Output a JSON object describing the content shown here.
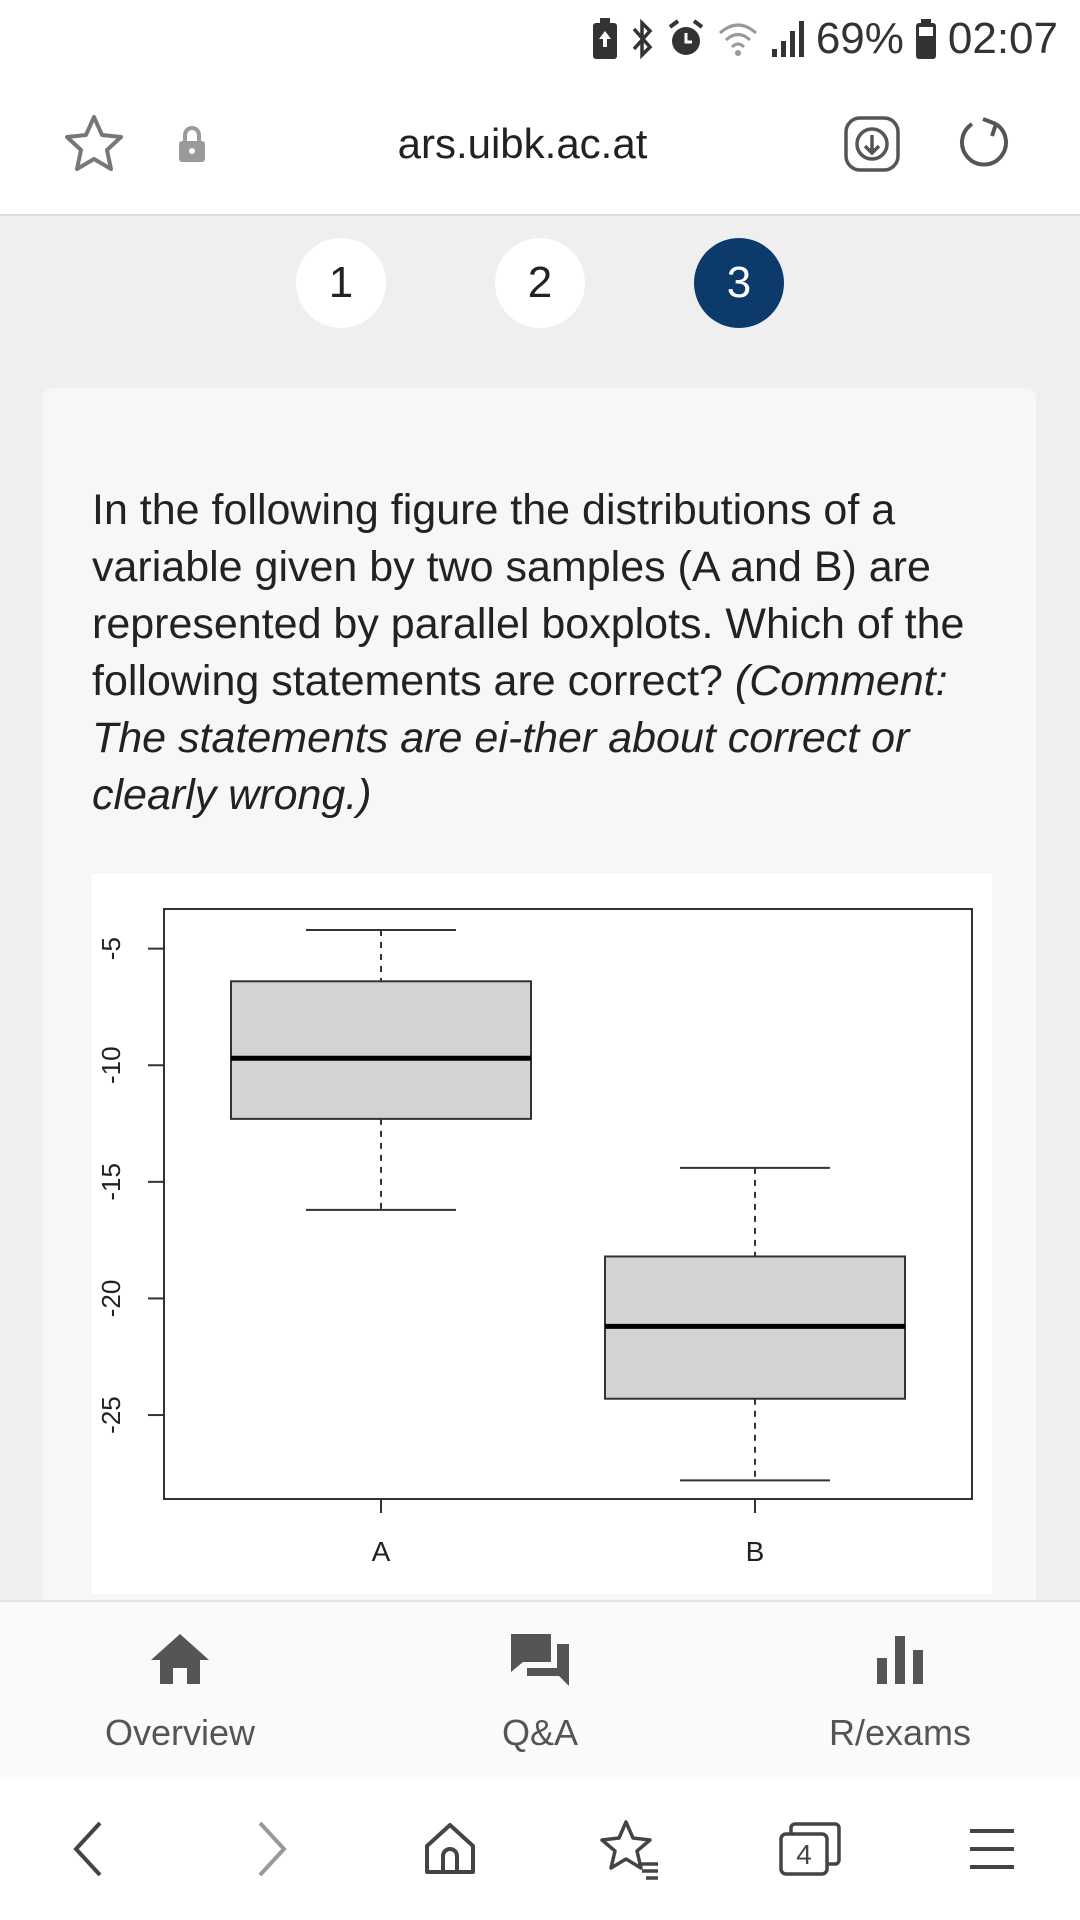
{
  "status_bar": {
    "battery_percent": "69%",
    "time": "02:07",
    "icons": [
      "battery-saver-icon",
      "bluetooth-icon",
      "alarm-icon",
      "wifi-icon",
      "signal-icon",
      "battery-icon"
    ]
  },
  "address_bar": {
    "url": "ars.uibk.ac.at",
    "icons": [
      "star-icon",
      "lock-icon",
      "download-icon",
      "reload-icon"
    ]
  },
  "steps": {
    "items": [
      {
        "label": "1",
        "active": false
      },
      {
        "label": "2",
        "active": false
      },
      {
        "label": "3",
        "active": true
      }
    ],
    "active_color": "#0b3a6b"
  },
  "question": {
    "text": "In the following figure the distributions of a variable given by two samples (A and B) are represented by parallel boxplots. Which of the following statements are correct? ",
    "comment": "(Comment: The statements are ei-ther about correct or clearly wrong.)"
  },
  "chart_data": {
    "type": "boxplot",
    "categories": [
      "A",
      "B"
    ],
    "boxes": [
      {
        "name": "A",
        "whisker_low": -16.2,
        "q1": -12.3,
        "median": -9.7,
        "q3": -6.4,
        "whisker_high": -4.2
      },
      {
        "name": "B",
        "whisker_low": -27.8,
        "q1": -24.3,
        "median": -21.2,
        "q3": -18.2,
        "whisker_high": -14.4
      }
    ],
    "y_ticks": [
      -5,
      -10,
      -15,
      -20,
      -25
    ],
    "ylim": [
      -28.6,
      -3.3
    ],
    "box_fill": "#d3d3d3"
  },
  "bottom_nav": {
    "items": [
      {
        "label": "Overview",
        "icon": "home-icon"
      },
      {
        "label": "Q&A",
        "icon": "chat-icon"
      },
      {
        "label": "R/exams",
        "icon": "bar-chart-icon"
      }
    ]
  },
  "browser_toolbar": {
    "tab_count": "4",
    "icons": [
      "back-icon",
      "forward-icon",
      "home-icon",
      "bookmarks-icon",
      "tabs-icon",
      "menu-icon"
    ]
  }
}
